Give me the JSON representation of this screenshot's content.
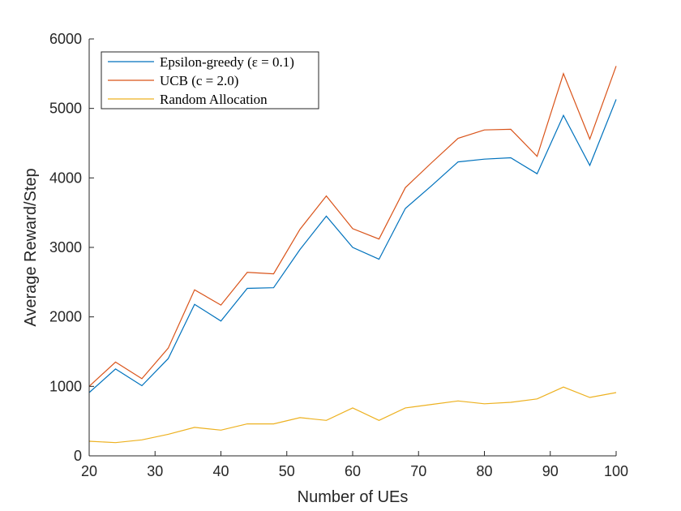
{
  "chart_data": {
    "type": "line",
    "title": "",
    "xlabel": "Number of UEs",
    "ylabel": "Average Reward/Step",
    "xlim": [
      20,
      100
    ],
    "ylim": [
      0,
      6000
    ],
    "xticks": [
      "20",
      "30",
      "40",
      "50",
      "60",
      "70",
      "80",
      "90",
      "100"
    ],
    "yticks": [
      "0",
      "1000",
      "2000",
      "3000",
      "4000",
      "5000",
      "6000"
    ],
    "grid": false,
    "legend_position": "top-left",
    "x": [
      20,
      24,
      28,
      32,
      36,
      40,
      44,
      48,
      52,
      56,
      60,
      64,
      68,
      72,
      76,
      80,
      84,
      88,
      92,
      96,
      100
    ],
    "series": [
      {
        "name": "Epsilon-greedy (ε = 0.1)",
        "color": "#0072BD",
        "values": [
          910,
          1250,
          1010,
          1400,
          2180,
          1940,
          2410,
          2420,
          2970,
          3450,
          3000,
          2830,
          3560,
          3890,
          4230,
          4270,
          4290,
          4060,
          4900,
          4180,
          5130
        ]
      },
      {
        "name": "UCB (c = 2.0)",
        "color": "#D95319",
        "values": [
          1000,
          1350,
          1110,
          1550,
          2390,
          2170,
          2640,
          2620,
          3260,
          3740,
          3270,
          3120,
          3860,
          4220,
          4570,
          4690,
          4700,
          4310,
          5500,
          4560,
          5610
        ]
      },
      {
        "name": "Random Allocation",
        "color": "#EDB120",
        "values": [
          210,
          190,
          230,
          310,
          410,
          370,
          460,
          460,
          550,
          510,
          690,
          510,
          690,
          740,
          790,
          750,
          770,
          820,
          990,
          840,
          910
        ]
      }
    ]
  }
}
